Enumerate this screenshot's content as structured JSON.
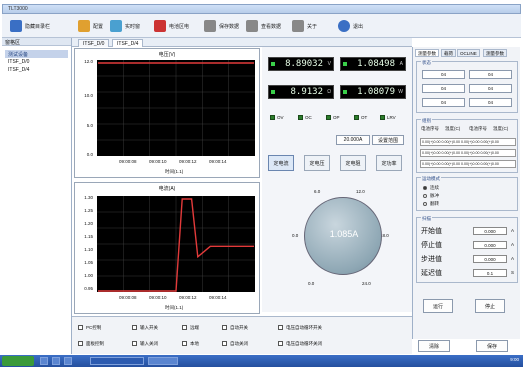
{
  "window": {
    "title": "TLT3000"
  },
  "toolbar": {
    "items": [
      {
        "label": "隐藏目录栏",
        "icon": "sidebar-icon",
        "color": "#3a6fc4"
      },
      {
        "label": "配置",
        "icon": "config-icon",
        "color": "#e0a030"
      },
      {
        "label": "实时窗",
        "icon": "monitor-icon",
        "color": "#4aa0d0"
      },
      {
        "label": "电池区电",
        "icon": "battery-icon",
        "color": "#cc3333"
      },
      {
        "label": "保存数据",
        "icon": "save-icon",
        "color": "#888888"
      },
      {
        "label": "查看数据",
        "icon": "view-data-icon",
        "color": "#888888"
      },
      {
        "label": "关于",
        "icon": "about-icon",
        "color": "#888888"
      },
      {
        "label": "退出",
        "icon": "exit-icon",
        "color": "#3a6fc4"
      }
    ]
  },
  "left": {
    "header": "窗格区",
    "group": "测试设备",
    "items": [
      "ITSF_D/0",
      "ITSF_D/4"
    ]
  },
  "tabs": [
    "ITSF_D/0",
    "ITSF_D/4"
  ],
  "graph_top": {
    "title": "电压(V)",
    "xaxis_title": "时间(1.1)",
    "yticks": [
      "12.0",
      "10.0",
      "5.0",
      "0.0"
    ],
    "xticks": [
      "09:00:08",
      "09:00:10",
      "09:00:12",
      "09:00:14"
    ]
  },
  "graph_bottom": {
    "title": "电流(A)",
    "xaxis_title": "时间(1.1)",
    "yticks": [
      "1.30",
      "1.25",
      "1.20",
      "1.15",
      "1.10",
      "1.05",
      "1.00",
      "0.95"
    ],
    "xticks": [
      "09:00:08",
      "09:00:10",
      "09:00:12",
      "09:00:14"
    ]
  },
  "chart_data": [
    {
      "type": "line",
      "title": "电压(V)",
      "xlabel": "时间(1.1)",
      "ylabel": "",
      "ylim": [
        0,
        12
      ],
      "x": [
        "09:00:06",
        "09:00:08",
        "09:00:10",
        "09:00:12",
        "09:00:14",
        "09:00:16"
      ],
      "series": [
        {
          "values": [
            12.0,
            12.0,
            12.0,
            12.0,
            12.0,
            12.0
          ]
        }
      ],
      "grid": true,
      "line_color": "#e23a3a"
    },
    {
      "type": "line",
      "title": "电流(A)",
      "xlabel": "时间(1.1)",
      "ylabel": "",
      "ylim": [
        0.95,
        1.3
      ],
      "x": [
        "09:00:06",
        "09:00:08",
        "09:00:10",
        "09:00:11",
        "09:00:11.5",
        "09:00:12",
        "09:00:12.4",
        "09:00:12.8",
        "09:00:13.2",
        "09:00:13.6",
        "09:00:14",
        "09:00:16"
      ],
      "series": [
        {
          "values": [
            0.95,
            0.95,
            0.95,
            0.95,
            1.3,
            1.3,
            1.08,
            1.1,
            1.12,
            1.12,
            1.12,
            1.12
          ]
        }
      ],
      "grid": true,
      "line_color": "#e23a3a"
    }
  ],
  "meters": [
    {
      "value": "8.89032",
      "unit": "V"
    },
    {
      "value": "1.08498",
      "unit": "A"
    },
    {
      "value": "8.9132",
      "unit": "Ω"
    },
    {
      "value": "1.08079",
      "unit": "W"
    }
  ],
  "leds": [
    "OV",
    "OC",
    "OP",
    "OT",
    "LRV"
  ],
  "range": {
    "value": "20.000A",
    "set_label": "设置范围"
  },
  "mode_buttons": [
    "定电流",
    "定电压",
    "定电阻",
    "定功率"
  ],
  "dial": {
    "value": "1.085A",
    "ticks": [
      "6.0",
      "12.0",
      "0.0",
      "18.0",
      "0.0",
      "24.0"
    ],
    "face_color": "#8ea7b4"
  },
  "right": {
    "tabs": [
      "测量参数",
      "载荷",
      "OCLINE",
      "测量参数"
    ],
    "status_group": "状态",
    "status_cells": [
      "04",
      "04",
      "04",
      "04",
      "04",
      "04"
    ],
    "seq_group": "组别",
    "seq_header": [
      "电池序号",
      "温度(C)",
      "电池序号",
      "温度(C)"
    ],
    "seq_rows": [
      "0.00(+)0.00 0.00(+)0.00 0.00(+)0.00 0.00(+)0.00",
      "0.00(+)0.00 0.00(+)0.00 0.00(+)0.00 0.00(+)0.00",
      "0.00(+)0.00 0.00(+)0.00 0.00(+)0.00 0.00(+)0.00"
    ],
    "mode_group": "运动模式",
    "modes": [
      "连续",
      "脉冲",
      "翻转"
    ],
    "scan_group": "扫描",
    "scan_rows": [
      {
        "label": "开始值",
        "value": "0.000",
        "unit": "A"
      },
      {
        "label": "停止值",
        "value": "0.000",
        "unit": "A"
      },
      {
        "label": "步进值",
        "value": "0.000",
        "unit": "A"
      },
      {
        "label": "延迟值",
        "value": "0.1",
        "unit": "S"
      }
    ],
    "run_label": "运行",
    "stop_label": "停止",
    "bottom_left": "清除",
    "bottom_right": "保存"
  },
  "bottom": {
    "col1": [
      "PC控制",
      "面板控制"
    ],
    "col2": [
      "输入开关",
      "输入关闭"
    ],
    "col3": [
      "远端",
      "本地"
    ],
    "col4": [
      "自动开关",
      "自动关闭"
    ],
    "col5": [
      "电压自动循环开关",
      "电压自动循环关闭"
    ]
  },
  "taskbar": {
    "clock": "9:00"
  }
}
